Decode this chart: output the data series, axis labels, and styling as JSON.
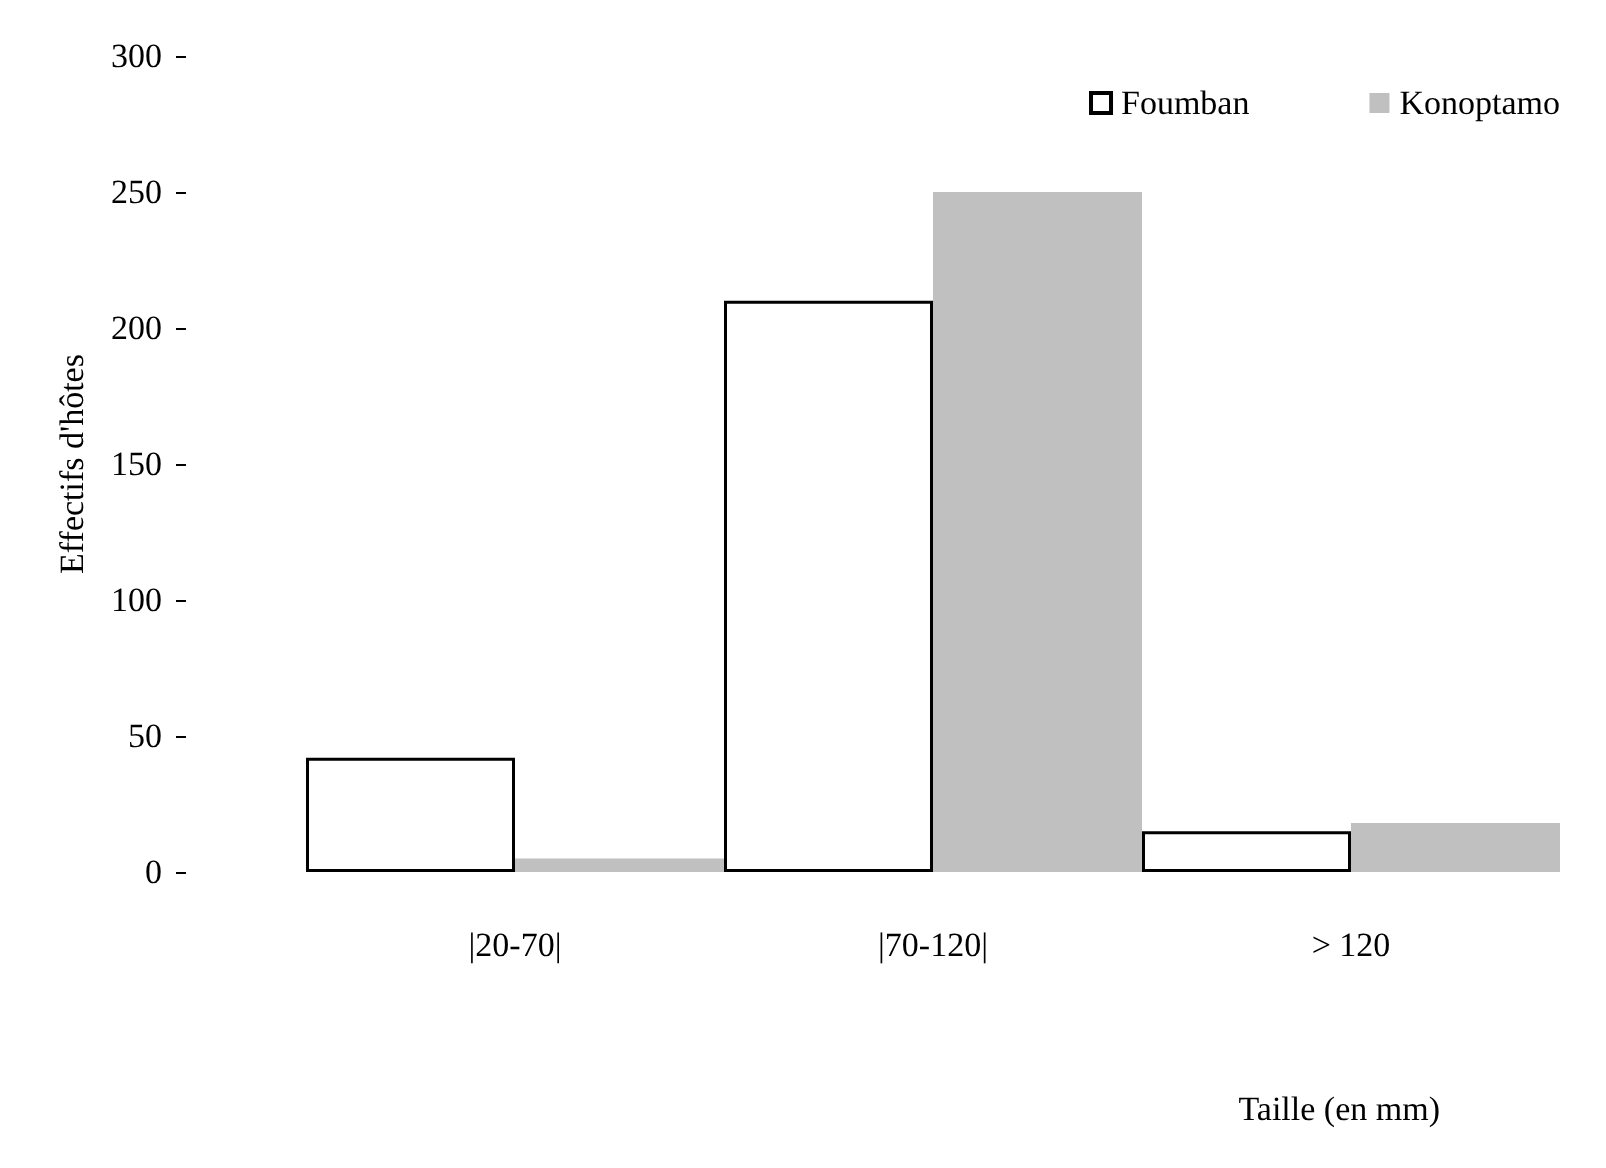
{
  "chart_data": {
    "type": "bar",
    "xlabel": "Taille (en mm)",
    "ylabel": "Effectifs d'hôtes",
    "categories": [
      "|20-70|",
      "|70-120|",
      "> 120"
    ],
    "series": [
      {
        "name": "Foumban",
        "color": "#ffffff",
        "values": [
          42,
          210,
          15
        ]
      },
      {
        "name": "Konoptamo",
        "color": "#c0c0c0",
        "values": [
          5,
          250,
          18
        ]
      }
    ],
    "ylim": [
      0,
      300
    ],
    "yticks": [
      0,
      50,
      100,
      150,
      200,
      250,
      300
    ],
    "grid": false,
    "legend": "top right"
  }
}
